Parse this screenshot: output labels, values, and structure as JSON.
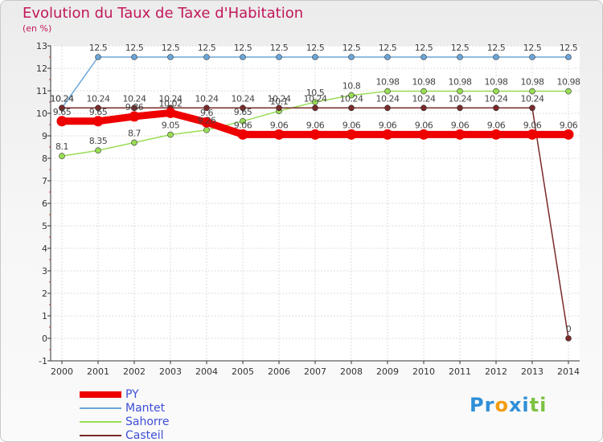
{
  "chart_data": {
    "type": "line",
    "title": "Evolution du Taux de Taxe d'Habitation",
    "ylabel": "(en %)",
    "xlabel": "",
    "ylim": [
      -1,
      13
    ],
    "yticks": [
      "-1",
      "0",
      "1",
      "2",
      "3",
      "4",
      "5",
      "6",
      "7",
      "8",
      "9",
      "10",
      "11",
      "12",
      "13"
    ],
    "categories": [
      "2000",
      "2001",
      "2002",
      "2003",
      "2004",
      "2005",
      "2006",
      "2007",
      "2008",
      "2009",
      "2010",
      "2011",
      "2012",
      "2013",
      "2014"
    ],
    "series": [
      {
        "name": "PY",
        "color": "#ee0000",
        "values": [
          9.65,
          9.65,
          9.86,
          10.02,
          9.6,
          9.06,
          9.06,
          9.06,
          9.06,
          9.06,
          9.06,
          9.06,
          9.06,
          9.06,
          9.06
        ],
        "labels": [
          "9.65",
          "9.65",
          "9.86",
          "10.02",
          "9.6",
          "9.06",
          "9.06",
          "9.06",
          "9.06",
          "9.06",
          "9.06",
          "9.06",
          "9.06",
          "9.06",
          "9.06"
        ]
      },
      {
        "name": "Mantet",
        "color": "#6aa5d8",
        "values": [
          10.24,
          12.5,
          12.5,
          12.5,
          12.5,
          12.5,
          12.5,
          12.5,
          12.5,
          12.5,
          12.5,
          12.5,
          12.5,
          12.5,
          12.5
        ],
        "labels": [
          "10.24",
          "12.5",
          "12.5",
          "12.5",
          "12.5",
          "12.5",
          "12.5",
          "12.5",
          "12.5",
          "12.5",
          "12.5",
          "12.5",
          "12.5",
          "12.5",
          "12.5"
        ]
      },
      {
        "name": "Sahorre",
        "color": "#99dd55",
        "values": [
          8.1,
          8.35,
          8.7,
          9.05,
          9.26,
          9.65,
          10.1,
          10.5,
          10.8,
          10.98,
          10.98,
          10.98,
          10.98,
          10.98,
          10.98
        ],
        "labels": [
          "8.1",
          "8.35",
          "8.7",
          "9.05",
          "9.26",
          "9.65",
          "10.1",
          "10.5",
          "10.8",
          "10.98",
          "10.98",
          "10.98",
          "10.98",
          "10.98",
          "10.98"
        ]
      },
      {
        "name": "Casteil",
        "color": "#7a2a2a",
        "values": [
          10.24,
          10.24,
          10.24,
          10.24,
          10.24,
          10.24,
          10.24,
          10.24,
          10.24,
          10.24,
          10.24,
          10.24,
          10.24,
          10.24,
          0
        ],
        "labels": [
          "10.24",
          "10.24",
          "10.24",
          "10.24",
          "10.24",
          "10.24",
          "10.24",
          "10.24",
          "10.24",
          "10.24",
          "10.24",
          "10.24",
          "10.24",
          "10.24",
          "0"
        ]
      }
    ],
    "legend": [
      "PY",
      "Mantet",
      "Sahorre",
      "Casteil"
    ],
    "legend_position": "bottom-left"
  },
  "brand": {
    "text_parts": [
      "Pr",
      "o",
      "x",
      "i",
      "ti"
    ],
    "colors": [
      "#2f8fd8",
      "#f39c12",
      "#2f8fd8",
      "#2f8fd8",
      "#7cc242"
    ]
  }
}
